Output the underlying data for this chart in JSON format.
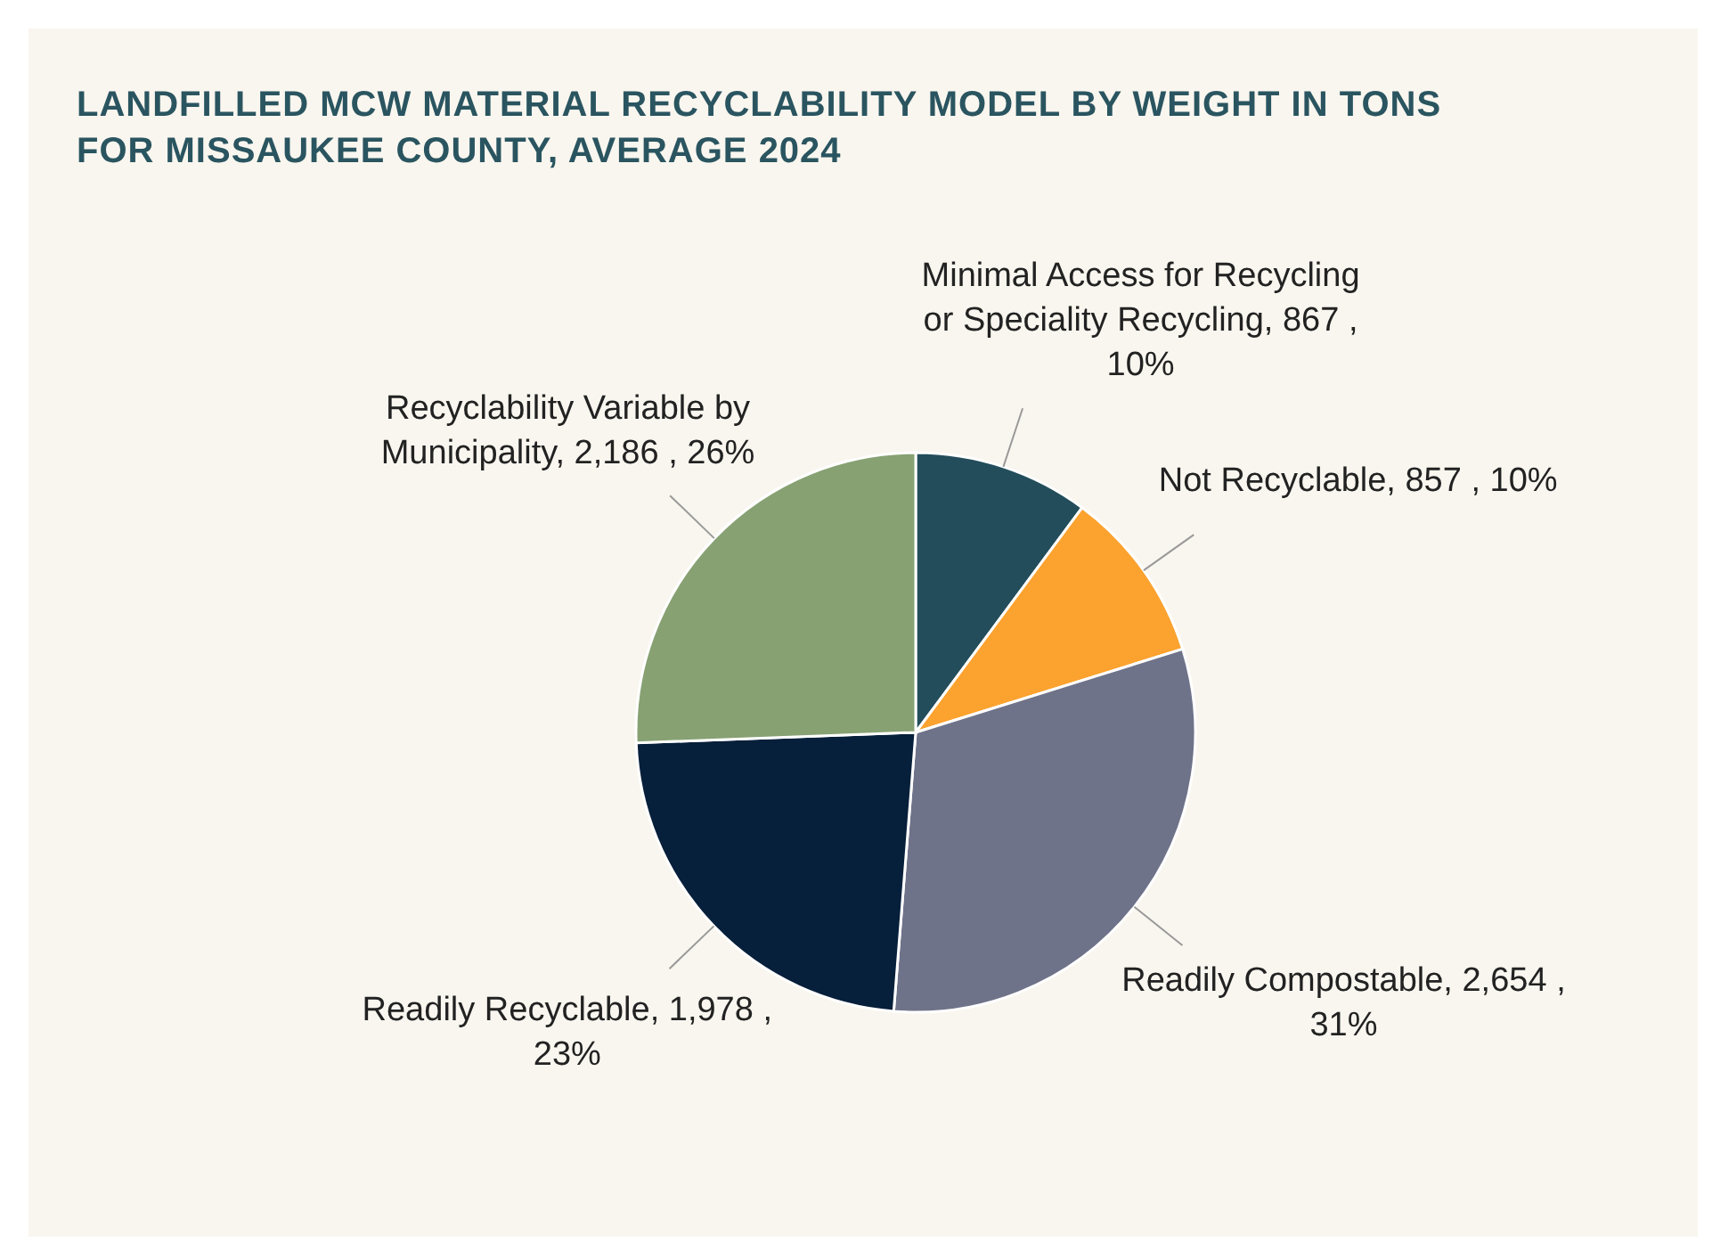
{
  "chart_data": {
    "type": "pie",
    "title": "LANDFILLED MCW MATERIAL RECYCLABILITY MODEL BY WEIGHT IN TONS FOR MISSAUKEE COUNTY, AVERAGE 2024",
    "categories": [
      "Minimal Access for Recycling or Speciality Recycling",
      "Not Recyclable",
      "Readily Compostable",
      "Readily Recyclable",
      "Recyclability Variable by Municipality"
    ],
    "values": [
      867,
      857,
      2654,
      1978,
      2186
    ],
    "value_labels": [
      "867 , 10%",
      "857 , 10%",
      "2,654 , 31%",
      "1,978 , 23%",
      "2,186 , 26%"
    ],
    "colors": [
      "#234d5a",
      "#fba22f",
      "#6f7389",
      "#061f3a",
      "#87a173"
    ]
  }
}
